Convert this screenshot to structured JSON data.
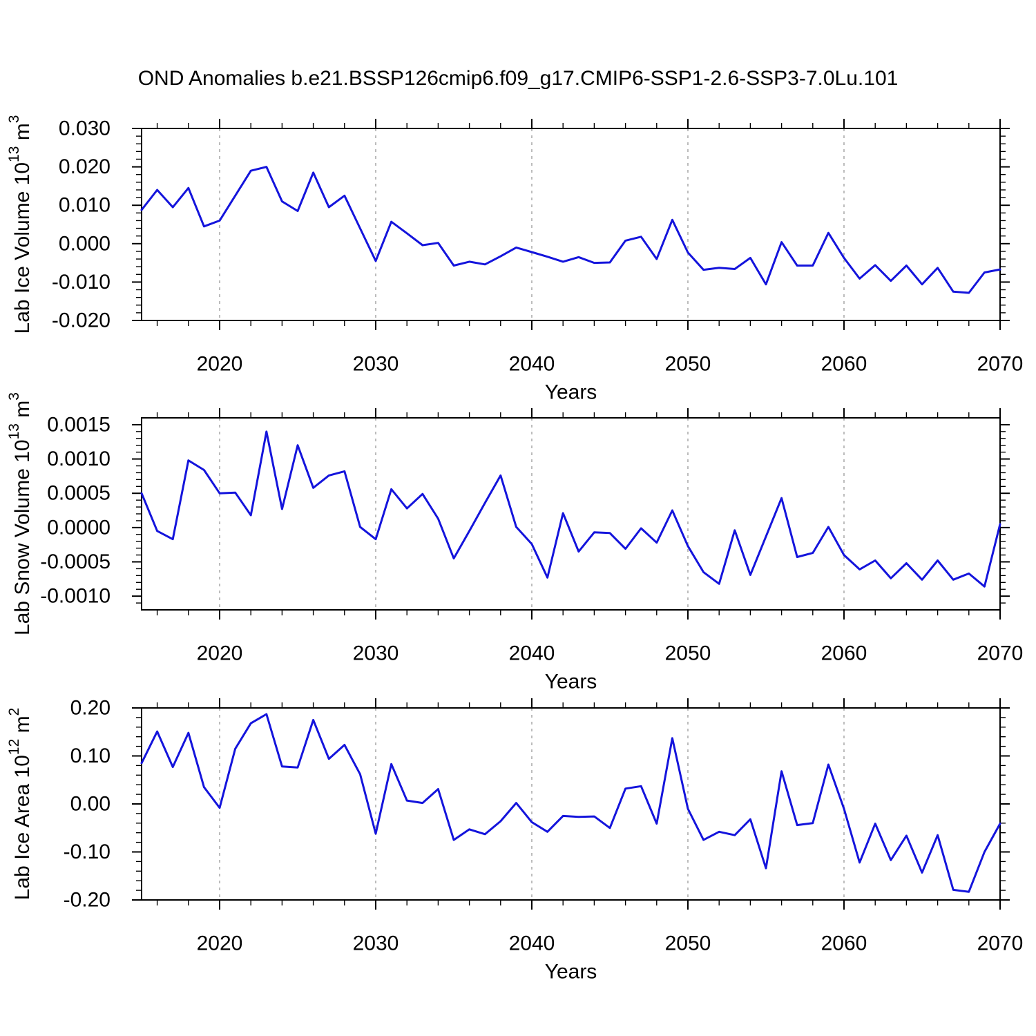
{
  "title": "OND Anomalies b.e21.BSSP126cmip6.f09_g17.CMIP6-SSP1-2.6-SSP3-7.0Lu.101",
  "colors": {
    "line": "#1414dc",
    "axis": "#000000",
    "grid": "#999999",
    "background": "#ffffff",
    "text": "#000000"
  },
  "x_axis": {
    "label": "Years",
    "range": [
      2015,
      2070
    ],
    "major_tick_years": [
      2020,
      2030,
      2040,
      2050,
      2060,
      2070
    ],
    "minor_tick_step_years": 2,
    "grid_years": [
      2020,
      2030,
      2040,
      2050,
      2060
    ],
    "years": [
      2015,
      2016,
      2017,
      2018,
      2019,
      2020,
      2021,
      2022,
      2023,
      2024,
      2025,
      2026,
      2027,
      2028,
      2029,
      2030,
      2031,
      2032,
      2033,
      2034,
      2035,
      2036,
      2037,
      2038,
      2039,
      2040,
      2041,
      2042,
      2043,
      2044,
      2045,
      2046,
      2047,
      2048,
      2049,
      2050,
      2051,
      2052,
      2053,
      2054,
      2055,
      2056,
      2057,
      2058,
      2059,
      2060,
      2061,
      2062,
      2063,
      2064,
      2065,
      2066,
      2067,
      2068,
      2069,
      2070
    ]
  },
  "chart_data": [
    {
      "type": "line",
      "id": "lab-ice-volume",
      "title": "",
      "ylabel_text": "Lab Ice Volume 10^13 m^3",
      "ylabel_segments": [
        [
          "Lab Ice Volume 10",
          0
        ],
        [
          "13",
          1
        ],
        [
          " m",
          0
        ],
        [
          "3",
          1
        ]
      ],
      "xlabel": "Years",
      "ylim": [
        -0.02,
        0.03
      ],
      "ytick_values": [
        0.03,
        0.02,
        0.01,
        0.0,
        -0.01,
        -0.02
      ],
      "ytick_labels": [
        "0.030",
        "0.020",
        "0.010",
        "0.000",
        "-0.010",
        "-0.020"
      ],
      "yminor_step": 0.002,
      "grid": "vertical-dashed",
      "legend": "none",
      "values": [
        0.0088,
        0.014,
        0.0095,
        0.0145,
        0.0045,
        0.006,
        0.0125,
        0.019,
        0.02,
        0.011,
        0.0085,
        0.0185,
        0.0095,
        0.0125,
        0.004,
        -0.0045,
        0.0057,
        0.0027,
        -0.0004,
        0.0002,
        -0.0057,
        -0.0047,
        -0.0054,
        -0.0033,
        -0.001,
        -0.0022,
        -0.0034,
        -0.0047,
        -0.0035,
        -0.005,
        -0.0049,
        0.0008,
        0.0018,
        -0.004,
        0.0062,
        -0.0023,
        -0.0068,
        -0.0063,
        -0.0066,
        -0.0037,
        -0.0106,
        0.0004,
        -0.0057,
        -0.0057,
        0.0028,
        -0.0037,
        -0.0091,
        -0.0056,
        -0.0097,
        -0.0057,
        -0.0106,
        -0.0063,
        -0.0125,
        -0.0128,
        -0.0075,
        -0.0067
      ]
    },
    {
      "type": "line",
      "id": "lab-snow-volume",
      "title": "",
      "ylabel_text": "Lab Snow Volume 10^13 m^3",
      "ylabel_segments": [
        [
          "Lab Snow Volume 10",
          0
        ],
        [
          "13",
          1
        ],
        [
          " m",
          0
        ],
        [
          "3",
          1
        ]
      ],
      "xlabel": "Years",
      "ylim": [
        -0.0012,
        0.0016
      ],
      "ytick_values": [
        0.0015,
        0.001,
        0.0005,
        0.0,
        -0.0005,
        -0.001
      ],
      "ytick_labels": [
        "0.0015",
        "0.0010",
        "0.0005",
        "0.0000",
        "-0.0005",
        "-0.0010"
      ],
      "yminor_step": 0.0001,
      "grid": "vertical-dashed",
      "legend": "none",
      "values": [
        0.0005,
        -5e-05,
        -0.00017,
        0.00098,
        0.00084,
        0.0005,
        0.00051,
        0.00018,
        0.0014,
        0.00027,
        0.0012,
        0.00058,
        0.00076,
        0.00082,
        1e-05,
        -0.00017,
        0.00056,
        0.00028,
        0.00049,
        0.00013,
        -0.00045,
        -5e-05,
        0.00036,
        0.00076,
        1e-05,
        -0.00024,
        -0.00073,
        0.00021,
        -0.00035,
        -7e-05,
        -8e-05,
        -0.00031,
        -1e-05,
        -0.00022,
        0.00025,
        -0.00027,
        -0.00065,
        -0.00082,
        -4e-05,
        -0.00069,
        -0.00013,
        0.00043,
        -0.00043,
        -0.00037,
        1e-05,
        -0.0004,
        -0.00061,
        -0.00048,
        -0.00074,
        -0.00052,
        -0.00076,
        -0.00048,
        -0.00076,
        -0.00067,
        -0.00086,
        5e-05
      ]
    },
    {
      "type": "line",
      "id": "lab-ice-area",
      "title": "",
      "ylabel_text": "Lab Ice Area 10^12 m^2",
      "ylabel_segments": [
        [
          "Lab Ice Area 10",
          0
        ],
        [
          "12",
          1
        ],
        [
          " m",
          0
        ],
        [
          "2",
          1
        ]
      ],
      "xlabel": "Years",
      "ylim": [
        -0.2,
        0.2
      ],
      "ytick_values": [
        0.2,
        0.1,
        0.0,
        -0.1,
        -0.2
      ],
      "ytick_labels": [
        "0.20",
        "0.10",
        "0.00",
        "-0.10",
        "-0.20"
      ],
      "yminor_step": 0.02,
      "grid": "vertical-dashed",
      "legend": "none",
      "values": [
        0.085,
        0.151,
        0.077,
        0.148,
        0.035,
        -0.008,
        0.115,
        0.168,
        0.187,
        0.078,
        0.076,
        0.175,
        0.094,
        0.123,
        0.062,
        -0.062,
        0.083,
        0.007,
        0.002,
        0.031,
        -0.075,
        -0.053,
        -0.063,
        -0.036,
        0.002,
        -0.038,
        -0.058,
        -0.025,
        -0.027,
        -0.026,
        -0.05,
        0.032,
        0.037,
        -0.041,
        0.137,
        -0.01,
        -0.075,
        -0.058,
        -0.065,
        -0.032,
        -0.134,
        0.068,
        -0.044,
        -0.04,
        0.082,
        -0.01,
        -0.122,
        -0.041,
        -0.117,
        -0.066,
        -0.143,
        -0.065,
        -0.179,
        -0.183,
        -0.1,
        -0.041
      ]
    }
  ]
}
